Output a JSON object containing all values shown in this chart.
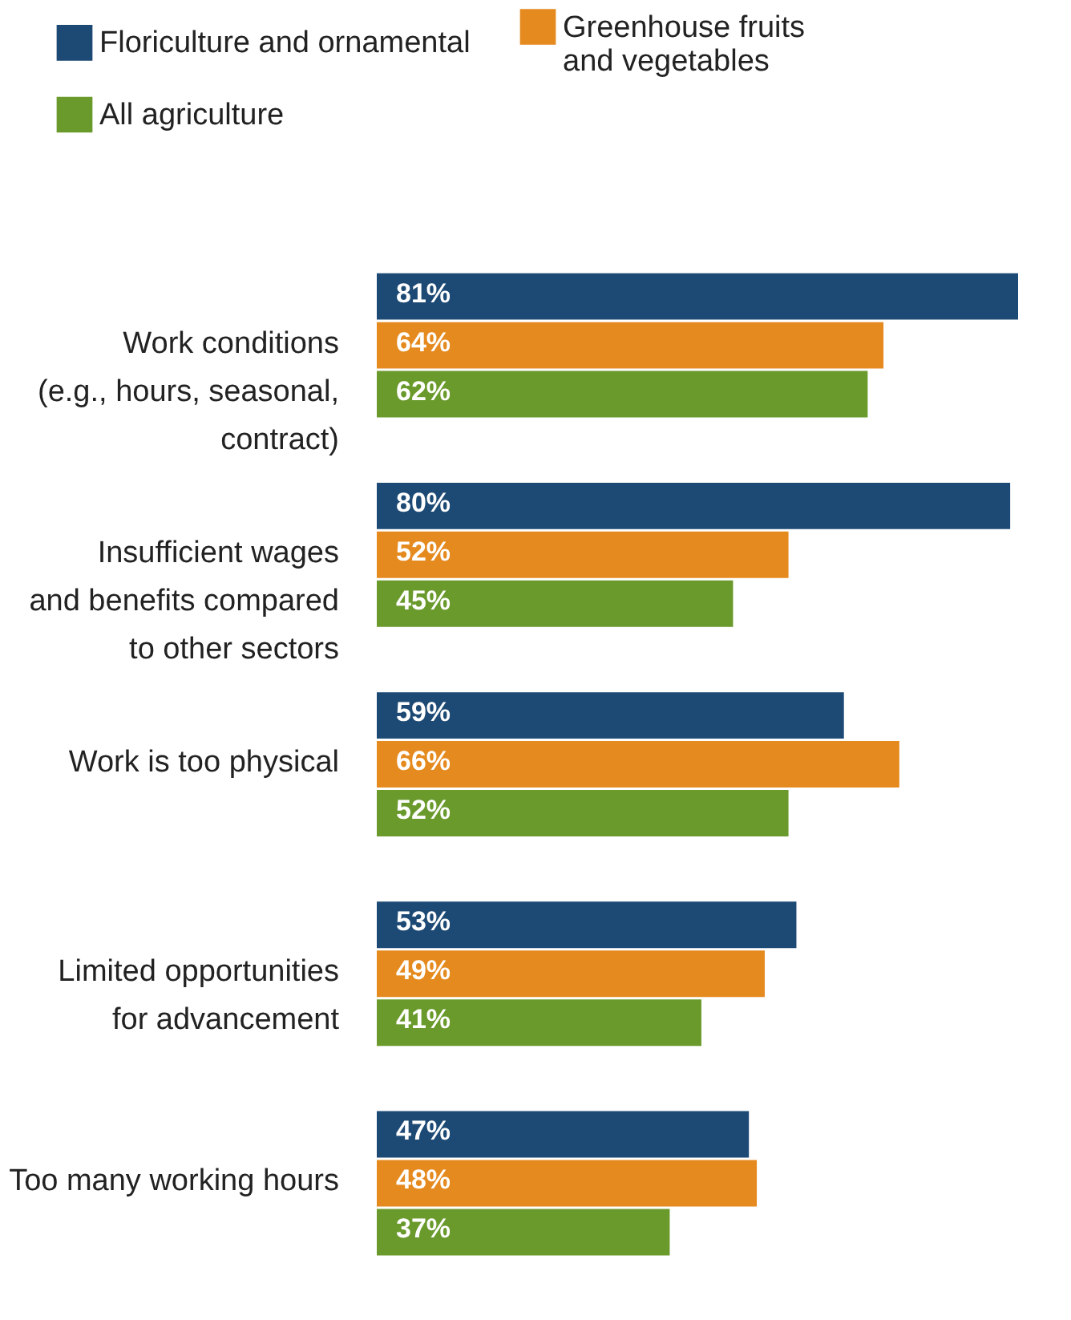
{
  "chart_data": {
    "type": "bar",
    "orientation": "horizontal",
    "legend": "top left",
    "grid": false,
    "categories": [
      "Work conditions\n(e.g., hours, seasonal,\ncontract)",
      "Insufficient wages\nand benefits compared\nto other sectors",
      "Work is too physical",
      "Limited opportunities\nfor advancement",
      "Too many working hours"
    ],
    "series": [
      {
        "name": "Floriculture and ornamental",
        "color": "#1d4a75",
        "values": [
          81,
          80,
          59,
          53,
          47
        ],
        "value_labels": [
          "81%",
          "80%",
          "59%",
          "53%",
          "47%"
        ]
      },
      {
        "name": "Greenhouse fruits\nand vegetables",
        "color": "#e58a1f",
        "values": [
          64,
          52,
          66,
          49,
          48
        ],
        "value_labels": [
          "64%",
          "52%",
          "66%",
          "49%",
          "48%"
        ]
      },
      {
        "name": "All agriculture",
        "color": "#6a9a2c",
        "values": [
          62,
          45,
          52,
          41,
          37
        ],
        "value_labels": [
          "62%",
          "45%",
          "52%",
          "41%",
          "37%"
        ]
      }
    ]
  }
}
